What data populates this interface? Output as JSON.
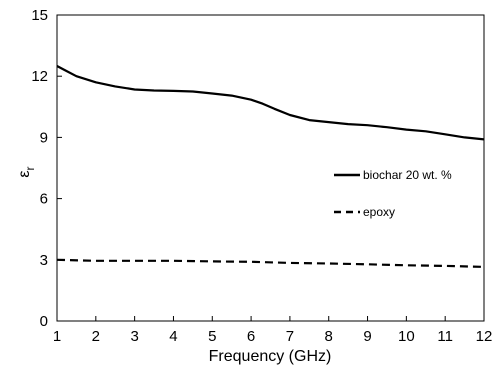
{
  "chart_data": {
    "type": "line",
    "xlabel": "Frequency (GHz)",
    "ylabel_main": "ε",
    "ylabel_sub": "r",
    "xlim": [
      1,
      12
    ],
    "ylim": [
      0,
      15
    ],
    "xticks": [
      1,
      2,
      3,
      4,
      5,
      6,
      7,
      8,
      9,
      10,
      11,
      12
    ],
    "yticks": [
      0,
      3,
      6,
      9,
      12,
      15
    ],
    "grid": false,
    "legend_position": "right",
    "series": [
      {
        "name": "biochar 20 wt. %",
        "style": "solid",
        "color": "#000000",
        "x": [
          1.0,
          1.2,
          1.5,
          2.0,
          2.5,
          3.0,
          3.5,
          4.0,
          4.5,
          5.0,
          5.5,
          6.0,
          6.3,
          6.6,
          7.0,
          7.5,
          8.0,
          8.5,
          9.0,
          9.5,
          10.0,
          10.5,
          11.0,
          11.5,
          12.0
        ],
        "y": [
          12.5,
          12.3,
          12.0,
          11.7,
          11.5,
          11.35,
          11.3,
          11.28,
          11.25,
          11.15,
          11.05,
          10.85,
          10.65,
          10.4,
          10.1,
          9.85,
          9.75,
          9.65,
          9.6,
          9.5,
          9.38,
          9.3,
          9.15,
          9.0,
          8.9
        ]
      },
      {
        "name": "epoxy",
        "style": "dashed",
        "color": "#000000",
        "x": [
          1,
          2,
          3,
          4,
          5,
          6,
          7,
          8,
          9,
          10,
          11,
          12
        ],
        "y": [
          3.0,
          2.95,
          2.95,
          2.95,
          2.92,
          2.9,
          2.85,
          2.82,
          2.78,
          2.73,
          2.7,
          2.65
        ]
      }
    ]
  }
}
